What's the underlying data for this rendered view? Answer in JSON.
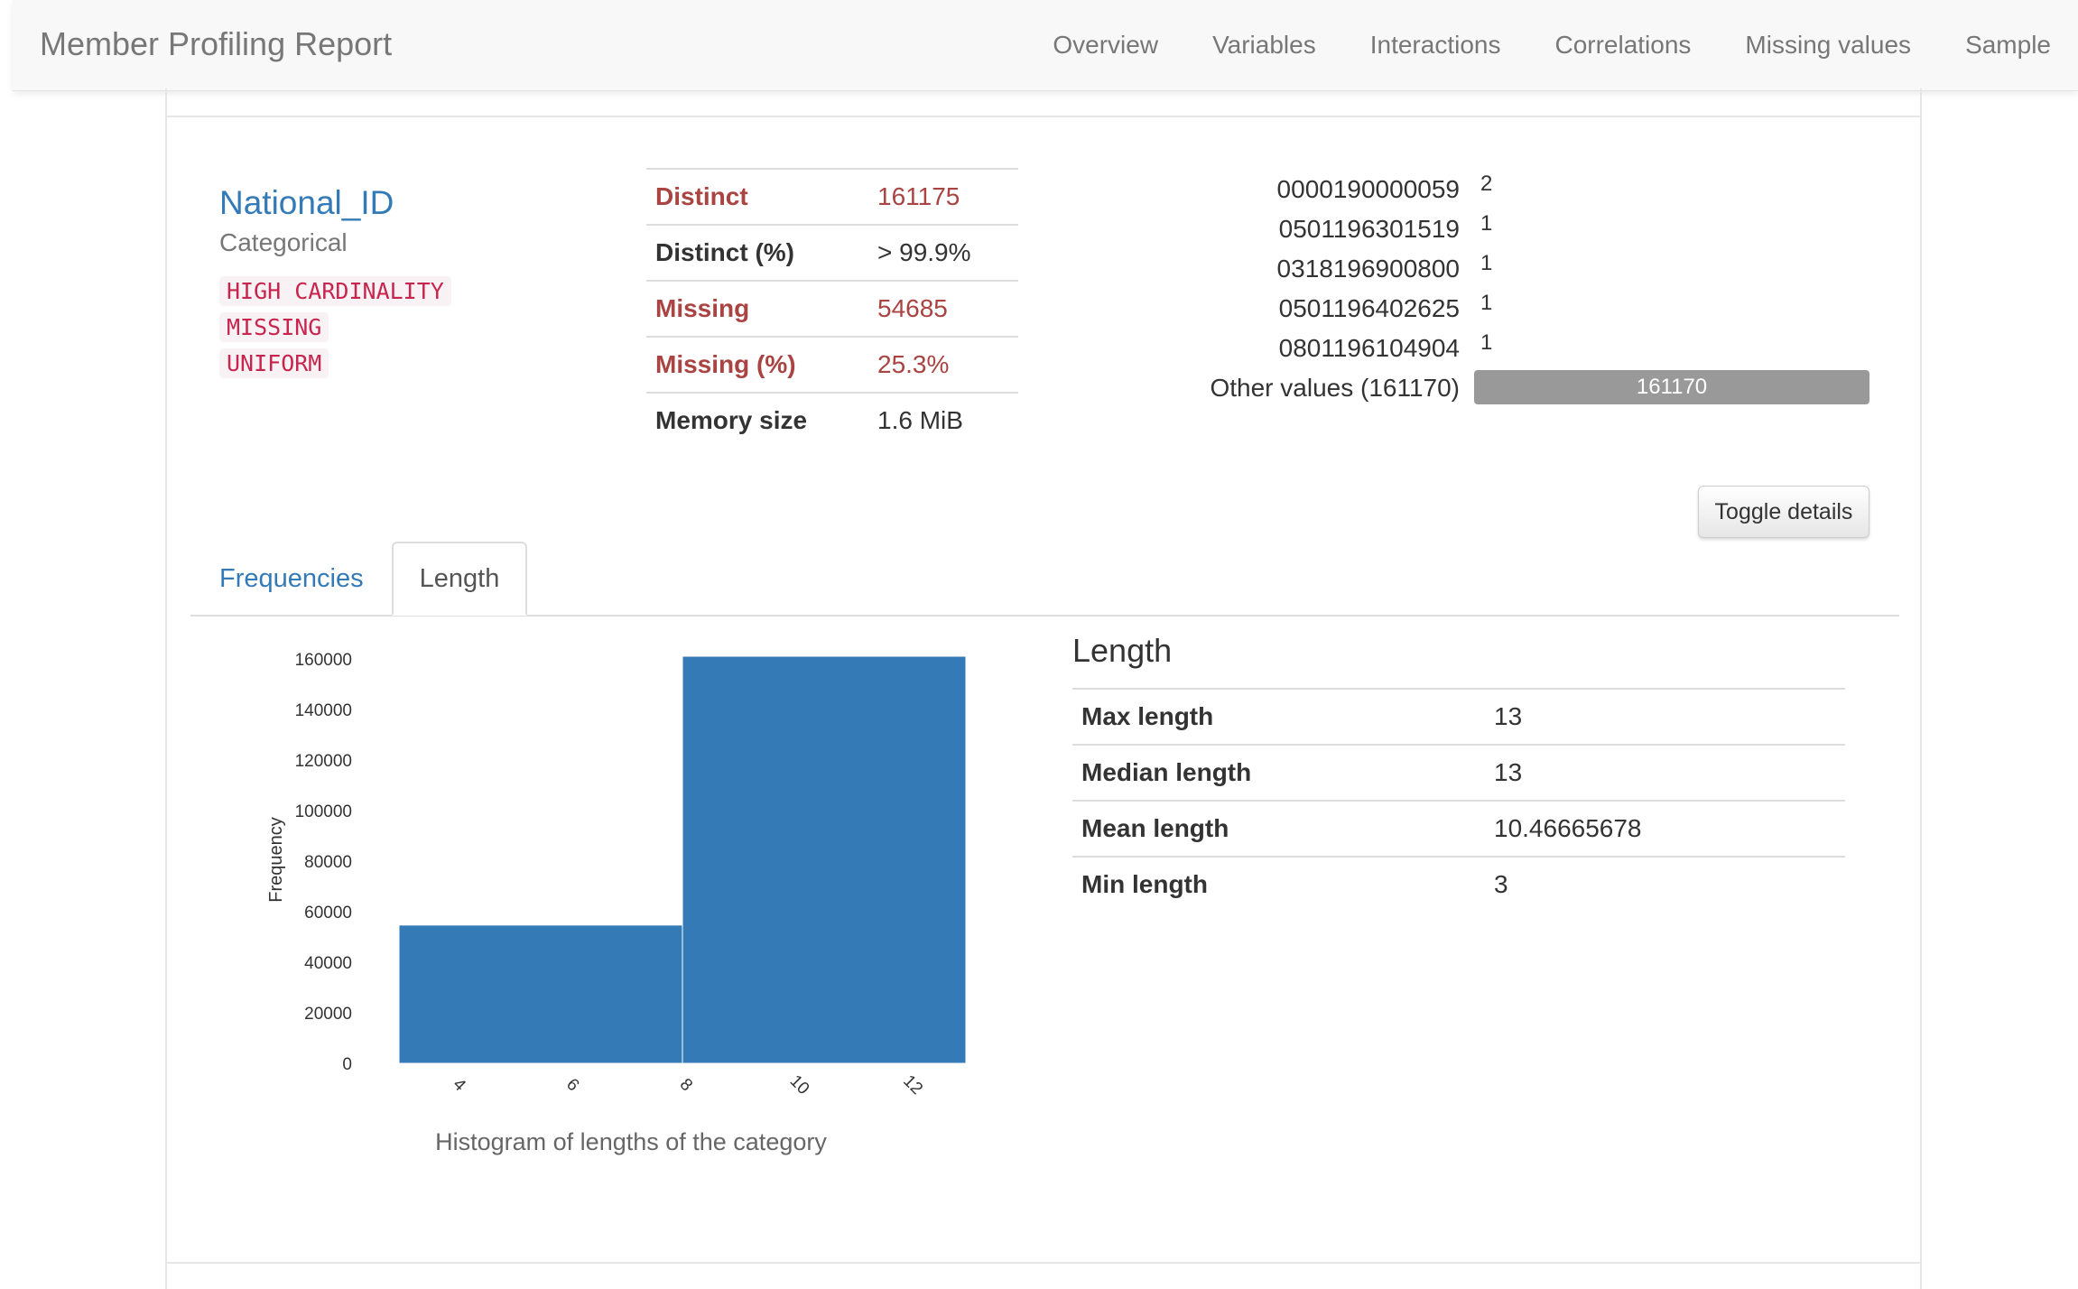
{
  "app": {
    "title": "Member Profiling Report"
  },
  "nav": [
    "Overview",
    "Variables",
    "Interactions",
    "Correlations",
    "Missing values",
    "Sample"
  ],
  "variable": {
    "name": "National_ID",
    "type": "Categorical",
    "badges": [
      "HIGH CARDINALITY",
      "MISSING",
      "UNIFORM"
    ]
  },
  "stats": [
    {
      "label": "Distinct",
      "value": "161175",
      "alert": true
    },
    {
      "label": "Distinct (%)",
      "value": "> 99.9%",
      "alert": false
    },
    {
      "label": "Missing",
      "value": "54685",
      "alert": true
    },
    {
      "label": "Missing (%)",
      "value": "25.3%",
      "alert": true
    },
    {
      "label": "Memory size",
      "value": "1.6 MiB",
      "alert": false
    }
  ],
  "frequencies": [
    {
      "value": "0000190000059",
      "count": "2"
    },
    {
      "value": "0501196301519",
      "count": "1"
    },
    {
      "value": "0318196900800",
      "count": "1"
    },
    {
      "value": "0501196402625",
      "count": "1"
    },
    {
      "value": "0801196104904",
      "count": "1"
    }
  ],
  "other_values": {
    "label": "Other values (161170)",
    "count": "161170"
  },
  "toggle_label": "Toggle details",
  "tabs": {
    "frequencies": "Frequencies",
    "length": "Length"
  },
  "length_panel": {
    "title": "Length",
    "rows": [
      {
        "label": "Max length",
        "value": "13"
      },
      {
        "label": "Median length",
        "value": "13"
      },
      {
        "label": "Mean length",
        "value": "10.46665678"
      },
      {
        "label": "Min length",
        "value": "3"
      }
    ]
  },
  "chart_caption": "Histogram of lengths of the category",
  "colors": {
    "bar": "#337ab7",
    "link": "#337ab7",
    "alert": "#a94442"
  },
  "chart_data": {
    "type": "bar",
    "bins": [
      {
        "x0": 3,
        "x1": 8,
        "value": 54685
      },
      {
        "x0": 8,
        "x1": 13,
        "value": 161000
      }
    ],
    "xticks": [
      4,
      6,
      8,
      10,
      12
    ],
    "yticks": [
      0,
      20000,
      40000,
      60000,
      80000,
      100000,
      120000,
      140000,
      160000
    ],
    "xlim": [
      3,
      13
    ],
    "ylim": [
      0,
      161000
    ],
    "ylabel": "Frequency",
    "xlabel": ""
  }
}
